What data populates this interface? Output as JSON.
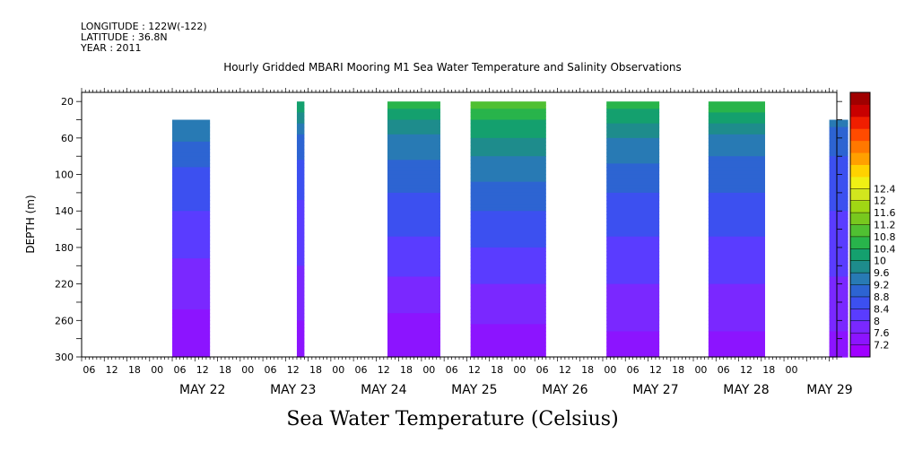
{
  "header": {
    "longitude": "LONGITUDE : 122W(-122)",
    "latitude": "LATITUDE : 36.8N",
    "year": "YEAR : 2011"
  },
  "chart_data": {
    "type": "heatmap",
    "title": "Hourly Gridded MBARI Mooring M1 Sea Water Temperature and Salinity Observations",
    "subtitle": "Sea Water Temperature (Celsius)",
    "ylabel": "DEPTH (m)",
    "ylim": [
      300,
      10
    ],
    "y_ticks": [
      20,
      60,
      100,
      140,
      180,
      220,
      260,
      300
    ],
    "xlim_hours": [
      0,
      200
    ],
    "x_hour_labels": [
      "06",
      "12",
      "18",
      "00",
      "06",
      "12",
      "18",
      "00",
      "06",
      "12",
      "18",
      "00",
      "06",
      "12",
      "18",
      "00",
      "06",
      "12",
      "18",
      "00",
      "06",
      "12",
      "18",
      "00",
      "06",
      "12",
      "18",
      "00",
      "06",
      "12",
      "18",
      "00"
    ],
    "x_day_labels": [
      "MAY 22",
      "MAY 23",
      "MAY 24",
      "MAY 25",
      "MAY 26",
      "MAY 27",
      "MAY 28",
      "MAY 29"
    ],
    "colorbar_levels": [
      7.2,
      7.6,
      8,
      8.4,
      8.8,
      9.2,
      9.6,
      10,
      10.4,
      10.8,
      11.2,
      11.6,
      12,
      12.4
    ],
    "colorbar_colors": [
      "#a000ff",
      "#8c14ff",
      "#7a28ff",
      "#5a3cff",
      "#3c50f0",
      "#2d64d2",
      "#287ab4",
      "#1e8c8c",
      "#14a06e",
      "#28b44b",
      "#50c032",
      "#78c81e",
      "#a0d714",
      "#d2e61e",
      "#f0f014",
      "#ffd200",
      "#ffa000",
      "#ff7800",
      "#ff4b00",
      "#f01e00",
      "#c80000",
      "#a00000"
    ],
    "segments": [
      {
        "start_hour": 24,
        "end_hour": 34,
        "top_depth": 40,
        "temps_by_depth": [
          [
            40,
            9.6
          ],
          [
            80,
            8.9
          ],
          [
            140,
            8.4
          ],
          [
            180,
            8.1
          ],
          [
            220,
            7.8
          ],
          [
            260,
            7.5
          ],
          [
            300,
            7.3
          ]
        ]
      },
      {
        "start_hour": 57,
        "end_hour": 59,
        "top_depth": 20,
        "temps_by_depth": [
          [
            20,
            10.4
          ],
          [
            60,
            9.0
          ],
          [
            140,
            8.3
          ],
          [
            220,
            7.9
          ],
          [
            300,
            7.3
          ]
        ]
      },
      {
        "start_hour": 81,
        "end_hour": 95,
        "top_depth": 20,
        "temps_by_depth": [
          [
            20,
            10.6
          ],
          [
            60,
            9.5
          ],
          [
            100,
            9.0
          ],
          [
            140,
            8.6
          ],
          [
            180,
            8.3
          ],
          [
            220,
            7.9
          ],
          [
            260,
            7.5
          ],
          [
            300,
            7.2
          ]
        ]
      },
      {
        "start_hour": 103,
        "end_hour": 123,
        "top_depth": 20,
        "temps_by_depth": [
          [
            20,
            11.0
          ],
          [
            40,
            10.4
          ],
          [
            80,
            9.6
          ],
          [
            120,
            9.0
          ],
          [
            160,
            8.6
          ],
          [
            200,
            8.2
          ],
          [
            240,
            7.8
          ],
          [
            300,
            7.3
          ]
        ]
      },
      {
        "start_hour": 139,
        "end_hour": 153,
        "top_depth": 20,
        "temps_by_depth": [
          [
            20,
            10.6
          ],
          [
            60,
            9.6
          ],
          [
            100,
            9.0
          ],
          [
            140,
            8.6
          ],
          [
            180,
            8.3
          ],
          [
            220,
            8.0
          ],
          [
            260,
            7.7
          ],
          [
            300,
            7.4
          ]
        ]
      },
      {
        "start_hour": 166,
        "end_hour": 181,
        "top_depth": 20,
        "temps_by_depth": [
          [
            20,
            10.8
          ],
          [
            60,
            9.4
          ],
          [
            100,
            9.0
          ],
          [
            140,
            8.6
          ],
          [
            180,
            8.3
          ],
          [
            220,
            8.0
          ],
          [
            260,
            7.7
          ],
          [
            300,
            7.4
          ]
        ]
      },
      {
        "start_hour": 198,
        "end_hour": 203,
        "top_depth": 40,
        "temps_by_depth": [
          [
            40,
            9.3
          ],
          [
            80,
            8.8
          ],
          [
            140,
            8.4
          ],
          [
            200,
            8.1
          ],
          [
            240,
            7.8
          ],
          [
            300,
            7.4
          ]
        ]
      }
    ]
  }
}
